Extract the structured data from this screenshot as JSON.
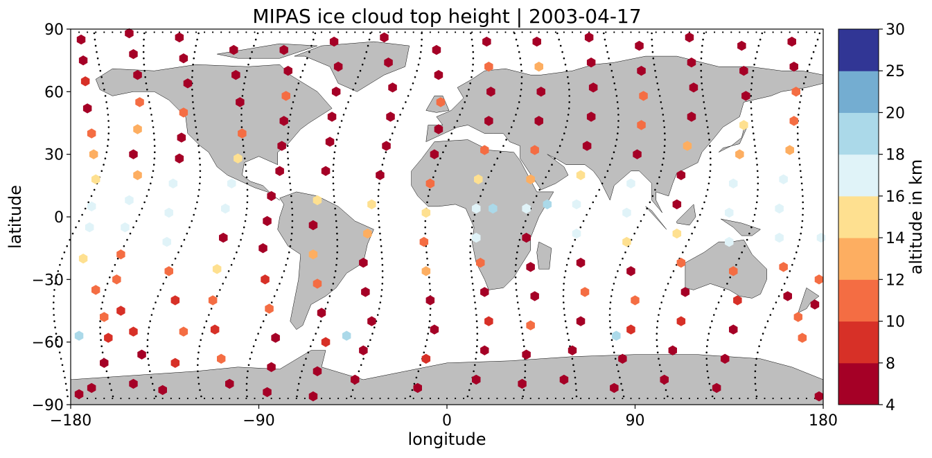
{
  "chart_data": {
    "type": "scatter",
    "title": "MIPAS ice cloud top height | 2003-04-17",
    "xlabel": "longitude",
    "ylabel": "latitude",
    "xlim": [
      -180,
      180
    ],
    "ylim": [
      -90,
      90
    ],
    "xticks": [
      -180,
      -90,
      0,
      90,
      180
    ],
    "yticks": [
      -90,
      -60,
      -30,
      0,
      30,
      60,
      90
    ],
    "xtick_labels": [
      "−180",
      "−90",
      "0",
      "90",
      "180"
    ],
    "ytick_labels": [
      "−90",
      "−60",
      "−30",
      "0",
      "30",
      "60",
      "90"
    ],
    "grid": false,
    "marker": "hexagon",
    "map": "coastlines",
    "colorbar": {
      "label": "altitude in km",
      "boundaries": [
        4,
        8,
        10,
        12,
        14,
        16,
        18,
        20,
        25,
        30
      ],
      "colors": [
        "#a50026",
        "#d73027",
        "#f46d43",
        "#fdae61",
        "#fee090",
        "#e0f3f8",
        "#abd9e9",
        "#74add1",
        "#313695"
      ],
      "tick_labels": [
        "4",
        "8",
        "10",
        "12",
        "14",
        "16",
        "18",
        "20",
        "25",
        "30"
      ]
    },
    "land_color": "#bebebe",
    "tracks_note_color": "#000000",
    "orbit_tracks": [
      {
        "lon0": -175,
        "amp": 6,
        "phase": 0
      },
      {
        "lon0": -151,
        "amp": 6,
        "phase": 0.6
      },
      {
        "lon0": -127,
        "amp": 6,
        "phase": 1.2
      },
      {
        "lon0": -102,
        "amp": 6,
        "phase": 1.8
      },
      {
        "lon0": -78,
        "amp": 6,
        "phase": 2.4
      },
      {
        "lon0": -54,
        "amp": 6,
        "phase": 3.0
      },
      {
        "lon0": -30,
        "amp": 6,
        "phase": 3.6
      },
      {
        "lon0": -5,
        "amp": 6,
        "phase": 4.2
      },
      {
        "lon0": 19,
        "amp": 6,
        "phase": 4.8
      },
      {
        "lon0": 43,
        "amp": 6,
        "phase": 5.4
      },
      {
        "lon0": 68,
        "amp": 6,
        "phase": 6.0
      },
      {
        "lon0": 92,
        "amp": 6,
        "phase": 0.3
      },
      {
        "lon0": 116,
        "amp": 6,
        "phase": 0.9
      },
      {
        "lon0": 141,
        "amp": 6,
        "phase": 1.5
      },
      {
        "lon0": 165,
        "amp": 6,
        "phase": 2.1
      }
    ],
    "points": [
      {
        "lon": -175,
        "lat": 85,
        "h": 6
      },
      {
        "lon": -174,
        "lat": 75,
        "h": 6
      },
      {
        "lon": -173,
        "lat": 65,
        "h": 9
      },
      {
        "lon": -172,
        "lat": 52,
        "h": 6
      },
      {
        "lon": -170,
        "lat": 40,
        "h": 11
      },
      {
        "lon": -169,
        "lat": 30,
        "h": 13
      },
      {
        "lon": -168,
        "lat": 18,
        "h": 15
      },
      {
        "lon": -170,
        "lat": 5,
        "h": 17
      },
      {
        "lon": -171,
        "lat": -5,
        "h": 17
      },
      {
        "lon": -174,
        "lat": -20,
        "h": 15
      },
      {
        "lon": -168,
        "lat": -35,
        "h": 11
      },
      {
        "lon": -164,
        "lat": -48,
        "h": 11
      },
      {
        "lon": -162,
        "lat": -58,
        "h": 9
      },
      {
        "lon": -164,
        "lat": -70,
        "h": 6
      },
      {
        "lon": -170,
        "lat": -82,
        "h": 6
      },
      {
        "lon": -176,
        "lat": -85,
        "h": 6
      },
      {
        "lon": -176,
        "lat": -57,
        "h": 19
      },
      {
        "lon": -152,
        "lat": 88,
        "h": 6
      },
      {
        "lon": -150,
        "lat": 78,
        "h": 6
      },
      {
        "lon": -148,
        "lat": 68,
        "h": 6
      },
      {
        "lon": -147,
        "lat": 55,
        "h": 11
      },
      {
        "lon": -148,
        "lat": 42,
        "h": 13
      },
      {
        "lon": -150,
        "lat": 30,
        "h": 6
      },
      {
        "lon": -148,
        "lat": 20,
        "h": 13
      },
      {
        "lon": -152,
        "lat": 8,
        "h": 17
      },
      {
        "lon": -154,
        "lat": -5,
        "h": 17
      },
      {
        "lon": -156,
        "lat": -18,
        "h": 11
      },
      {
        "lon": -158,
        "lat": -30,
        "h": 11
      },
      {
        "lon": -156,
        "lat": -45,
        "h": 9
      },
      {
        "lon": -150,
        "lat": -55,
        "h": 9
      },
      {
        "lon": -146,
        "lat": -66,
        "h": 6
      },
      {
        "lon": -150,
        "lat": -80,
        "h": 6
      },
      {
        "lon": -128,
        "lat": 86,
        "h": 6
      },
      {
        "lon": -126,
        "lat": 76,
        "h": 6
      },
      {
        "lon": -124,
        "lat": 64,
        "h": 6
      },
      {
        "lon": -126,
        "lat": 50,
        "h": 11
      },
      {
        "lon": -127,
        "lat": 38,
        "h": 6
      },
      {
        "lon": -128,
        "lat": 28,
        "h": 6
      },
      {
        "lon": -131,
        "lat": 16,
        "h": 17
      },
      {
        "lon": -133,
        "lat": 2,
        "h": 17
      },
      {
        "lon": -134,
        "lat": -12,
        "h": 17
      },
      {
        "lon": -133,
        "lat": -26,
        "h": 11
      },
      {
        "lon": -130,
        "lat": -40,
        "h": 9
      },
      {
        "lon": -126,
        "lat": -55,
        "h": 11
      },
      {
        "lon": -130,
        "lat": -70,
        "h": 9
      },
      {
        "lon": -136,
        "lat": -83,
        "h": 6
      },
      {
        "lon": -102,
        "lat": 80,
        "h": 6
      },
      {
        "lon": -101,
        "lat": 68,
        "h": 6
      },
      {
        "lon": -99,
        "lat": 55,
        "h": 6
      },
      {
        "lon": -98,
        "lat": 40,
        "h": 11
      },
      {
        "lon": -100,
        "lat": 28,
        "h": 15
      },
      {
        "lon": -103,
        "lat": 16,
        "h": 17
      },
      {
        "lon": -106,
        "lat": 4,
        "h": 17
      },
      {
        "lon": -107,
        "lat": -10,
        "h": 6
      },
      {
        "lon": -110,
        "lat": -25,
        "h": 15
      },
      {
        "lon": -112,
        "lat": -40,
        "h": 11
      },
      {
        "lon": -111,
        "lat": -54,
        "h": 9
      },
      {
        "lon": -108,
        "lat": -68,
        "h": 11
      },
      {
        "lon": -104,
        "lat": -80,
        "h": 6
      },
      {
        "lon": -78,
        "lat": 80,
        "h": 6
      },
      {
        "lon": -76,
        "lat": 70,
        "h": 6
      },
      {
        "lon": -77,
        "lat": 58,
        "h": 11
      },
      {
        "lon": -78,
        "lat": 46,
        "h": 6
      },
      {
        "lon": -79,
        "lat": 34,
        "h": 6
      },
      {
        "lon": -80,
        "lat": 22,
        "h": 6
      },
      {
        "lon": -84,
        "lat": 10,
        "h": 6
      },
      {
        "lon": -86,
        "lat": -2,
        "h": 6
      },
      {
        "lon": -88,
        "lat": -15,
        "h": 6
      },
      {
        "lon": -87,
        "lat": -30,
        "h": 9
      },
      {
        "lon": -85,
        "lat": -44,
        "h": 11
      },
      {
        "lon": -82,
        "lat": -58,
        "h": 6
      },
      {
        "lon": -84,
        "lat": -72,
        "h": 6
      },
      {
        "lon": -86,
        "lat": -84,
        "h": 6
      },
      {
        "lon": -54,
        "lat": 84,
        "h": 6
      },
      {
        "lon": -52,
        "lat": 72,
        "h": 6
      },
      {
        "lon": -53,
        "lat": 60,
        "h": 6
      },
      {
        "lon": -55,
        "lat": 48,
        "h": 6
      },
      {
        "lon": -56,
        "lat": 36,
        "h": 6
      },
      {
        "lon": -58,
        "lat": 22,
        "h": 6
      },
      {
        "lon": -62,
        "lat": 8,
        "h": 15
      },
      {
        "lon": -64,
        "lat": -4,
        "h": 6
      },
      {
        "lon": -64,
        "lat": -18,
        "h": 13
      },
      {
        "lon": -62,
        "lat": -32,
        "h": 11
      },
      {
        "lon": -60,
        "lat": -46,
        "h": 6
      },
      {
        "lon": -58,
        "lat": -60,
        "h": 9
      },
      {
        "lon": -62,
        "lat": -74,
        "h": 6
      },
      {
        "lon": -64,
        "lat": -86,
        "h": 6
      },
      {
        "lon": -30,
        "lat": 86,
        "h": 6
      },
      {
        "lon": -28,
        "lat": 74,
        "h": 6
      },
      {
        "lon": -26,
        "lat": 62,
        "h": 6
      },
      {
        "lon": -27,
        "lat": 48,
        "h": 6
      },
      {
        "lon": -29,
        "lat": 34,
        "h": 6
      },
      {
        "lon": -32,
        "lat": 20,
        "h": 6
      },
      {
        "lon": -36,
        "lat": 6,
        "h": 15
      },
      {
        "lon": -38,
        "lat": -8,
        "h": 13
      },
      {
        "lon": -40,
        "lat": -22,
        "h": 6
      },
      {
        "lon": -39,
        "lat": -36,
        "h": 6
      },
      {
        "lon": -36,
        "lat": -50,
        "h": 6
      },
      {
        "lon": -40,
        "lat": -64,
        "h": 6
      },
      {
        "lon": -44,
        "lat": -78,
        "h": 6
      },
      {
        "lon": -48,
        "lat": -57,
        "h": 19
      },
      {
        "lon": -5,
        "lat": 80,
        "h": 6
      },
      {
        "lon": -4,
        "lat": 68,
        "h": 6
      },
      {
        "lon": -3,
        "lat": 55,
        "h": 11
      },
      {
        "lon": -4,
        "lat": 42,
        "h": 6
      },
      {
        "lon": -6,
        "lat": 30,
        "h": 6
      },
      {
        "lon": -8,
        "lat": 16,
        "h": 11
      },
      {
        "lon": -10,
        "lat": 2,
        "h": 15
      },
      {
        "lon": -11,
        "lat": -12,
        "h": 11
      },
      {
        "lon": -10,
        "lat": -26,
        "h": 13
      },
      {
        "lon": -8,
        "lat": -40,
        "h": 6
      },
      {
        "lon": -6,
        "lat": -54,
        "h": 6
      },
      {
        "lon": -10,
        "lat": -68,
        "h": 9
      },
      {
        "lon": -14,
        "lat": -82,
        "h": 6
      },
      {
        "lon": 19,
        "lat": 84,
        "h": 6
      },
      {
        "lon": 20,
        "lat": 72,
        "h": 11
      },
      {
        "lon": 21,
        "lat": 60,
        "h": 6
      },
      {
        "lon": 20,
        "lat": 46,
        "h": 6
      },
      {
        "lon": 18,
        "lat": 32,
        "h": 11
      },
      {
        "lon": 15,
        "lat": 18,
        "h": 15
      },
      {
        "lon": 14,
        "lat": 4,
        "h": 17
      },
      {
        "lon": 14,
        "lat": -10,
        "h": 17
      },
      {
        "lon": 16,
        "lat": -22,
        "h": 11
      },
      {
        "lon": 18,
        "lat": -36,
        "h": 6
      },
      {
        "lon": 20,
        "lat": -50,
        "h": 9
      },
      {
        "lon": 18,
        "lat": -64,
        "h": 6
      },
      {
        "lon": 14,
        "lat": -78,
        "h": 6
      },
      {
        "lon": 22,
        "lat": 4,
        "h": 19
      },
      {
        "lon": 43,
        "lat": 84,
        "h": 6
      },
      {
        "lon": 44,
        "lat": 72,
        "h": 13
      },
      {
        "lon": 45,
        "lat": 60,
        "h": 6
      },
      {
        "lon": 44,
        "lat": 46,
        "h": 6
      },
      {
        "lon": 42,
        "lat": 32,
        "h": 11
      },
      {
        "lon": 40,
        "lat": 18,
        "h": 13
      },
      {
        "lon": 38,
        "lat": 4,
        "h": 17
      },
      {
        "lon": 38,
        "lat": -10,
        "h": 6
      },
      {
        "lon": 40,
        "lat": -24,
        "h": 6
      },
      {
        "lon": 42,
        "lat": -38,
        "h": 6
      },
      {
        "lon": 40,
        "lat": -52,
        "h": 11
      },
      {
        "lon": 38,
        "lat": -66,
        "h": 6
      },
      {
        "lon": 36,
        "lat": -80,
        "h": 6
      },
      {
        "lon": 48,
        "lat": 6,
        "h": 19
      },
      {
        "lon": 68,
        "lat": 86,
        "h": 6
      },
      {
        "lon": 69,
        "lat": 74,
        "h": 6
      },
      {
        "lon": 70,
        "lat": 62,
        "h": 6
      },
      {
        "lon": 69,
        "lat": 48,
        "h": 6
      },
      {
        "lon": 67,
        "lat": 34,
        "h": 6
      },
      {
        "lon": 64,
        "lat": 20,
        "h": 15
      },
      {
        "lon": 62,
        "lat": 6,
        "h": 17
      },
      {
        "lon": 62,
        "lat": -8,
        "h": 17
      },
      {
        "lon": 64,
        "lat": -22,
        "h": 6
      },
      {
        "lon": 66,
        "lat": -36,
        "h": 11
      },
      {
        "lon": 64,
        "lat": -50,
        "h": 6
      },
      {
        "lon": 60,
        "lat": -64,
        "h": 6
      },
      {
        "lon": 56,
        "lat": -78,
        "h": 6
      },
      {
        "lon": 92,
        "lat": 82,
        "h": 6
      },
      {
        "lon": 93,
        "lat": 70,
        "h": 6
      },
      {
        "lon": 94,
        "lat": 58,
        "h": 11
      },
      {
        "lon": 93,
        "lat": 44,
        "h": 11
      },
      {
        "lon": 91,
        "lat": 30,
        "h": 6
      },
      {
        "lon": 88,
        "lat": 16,
        "h": 17
      },
      {
        "lon": 86,
        "lat": 2,
        "h": 17
      },
      {
        "lon": 86,
        "lat": -12,
        "h": 15
      },
      {
        "lon": 88,
        "lat": -26,
        "h": 6
      },
      {
        "lon": 90,
        "lat": -40,
        "h": 11
      },
      {
        "lon": 88,
        "lat": -54,
        "h": 9
      },
      {
        "lon": 84,
        "lat": -68,
        "h": 6
      },
      {
        "lon": 80,
        "lat": -82,
        "h": 6
      },
      {
        "lon": 81,
        "lat": -57,
        "h": 19
      },
      {
        "lon": 116,
        "lat": 86,
        "h": 6
      },
      {
        "lon": 117,
        "lat": 74,
        "h": 6
      },
      {
        "lon": 118,
        "lat": 62,
        "h": 6
      },
      {
        "lon": 117,
        "lat": 48,
        "h": 6
      },
      {
        "lon": 115,
        "lat": 34,
        "h": 13
      },
      {
        "lon": 112,
        "lat": 20,
        "h": 6
      },
      {
        "lon": 110,
        "lat": 6,
        "h": 6
      },
      {
        "lon": 110,
        "lat": -8,
        "h": 15
      },
      {
        "lon": 112,
        "lat": -22,
        "h": 11
      },
      {
        "lon": 114,
        "lat": -36,
        "h": 6
      },
      {
        "lon": 112,
        "lat": -50,
        "h": 9
      },
      {
        "lon": 108,
        "lat": -64,
        "h": 6
      },
      {
        "lon": 104,
        "lat": -78,
        "h": 6
      },
      {
        "lon": 141,
        "lat": 82,
        "h": 6
      },
      {
        "lon": 142,
        "lat": 70,
        "h": 6
      },
      {
        "lon": 143,
        "lat": 58,
        "h": 6
      },
      {
        "lon": 142,
        "lat": 44,
        "h": 15
      },
      {
        "lon": 140,
        "lat": 30,
        "h": 13
      },
      {
        "lon": 137,
        "lat": 16,
        "h": 17
      },
      {
        "lon": 135,
        "lat": 2,
        "h": 17
      },
      {
        "lon": 135,
        "lat": -12,
        "h": 17
      },
      {
        "lon": 137,
        "lat": -26,
        "h": 11
      },
      {
        "lon": 139,
        "lat": -40,
        "h": 9
      },
      {
        "lon": 137,
        "lat": -54,
        "h": 6
      },
      {
        "lon": 133,
        "lat": -68,
        "h": 6
      },
      {
        "lon": 129,
        "lat": -82,
        "h": 6
      },
      {
        "lon": 165,
        "lat": 84,
        "h": 6
      },
      {
        "lon": 166,
        "lat": 72,
        "h": 6
      },
      {
        "lon": 167,
        "lat": 60,
        "h": 11
      },
      {
        "lon": 166,
        "lat": 46,
        "h": 11
      },
      {
        "lon": 164,
        "lat": 32,
        "h": 13
      },
      {
        "lon": 161,
        "lat": 18,
        "h": 17
      },
      {
        "lon": 159,
        "lat": 4,
        "h": 17
      },
      {
        "lon": 159,
        "lat": -10,
        "h": 17
      },
      {
        "lon": 161,
        "lat": -24,
        "h": 11
      },
      {
        "lon": 163,
        "lat": -38,
        "h": 6
      },
      {
        "lon": 168,
        "lat": -48,
        "h": 11
      },
      {
        "lon": 170,
        "lat": -58,
        "h": 11
      },
      {
        "lon": 176,
        "lat": -42,
        "h": 6
      },
      {
        "lon": 178,
        "lat": -30,
        "h": 11
      },
      {
        "lon": 179,
        "lat": -10,
        "h": 17
      },
      {
        "lon": 178,
        "lat": -86,
        "h": 6
      }
    ]
  }
}
